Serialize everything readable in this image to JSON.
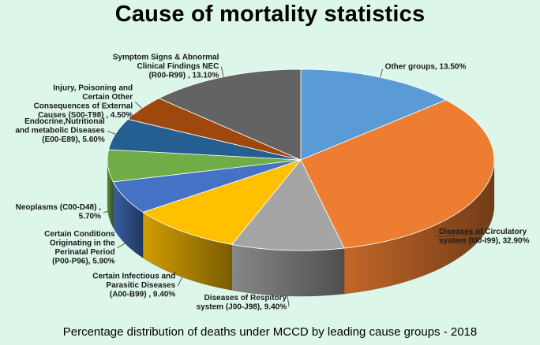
{
  "chart_data": {
    "type": "pie",
    "style": "3d",
    "title": "Cause of mortality statistics",
    "subtitle": "Percentage distribution of deaths under MCCD by leading cause groups - 2018",
    "slices": [
      {
        "label": "Other groups, 13.50%",
        "value": 13.5,
        "color": "#5b9bd5"
      },
      {
        "label": "Diseases of Circulatory system (I00-I99), 32.90%",
        "value": 32.9,
        "color": "#ed7d31"
      },
      {
        "label": "Diseases of Respitory system (J00-J98), 9.40%",
        "value": 9.4,
        "color": "#a5a5a5"
      },
      {
        "label": "Certain Infectious and Parasitic Diseases (A00-B99) , 9.40%",
        "value": 9.4,
        "color": "#ffc000"
      },
      {
        "label": "Certain Conditions Originating in the Perinatal Period (P00-P96), 5.90%",
        "value": 5.9,
        "color": "#4472c4"
      },
      {
        "label": "Neoplasms (C00-D48) , 5.70%",
        "value": 5.7,
        "color": "#70ad47"
      },
      {
        "label": "Endocrine,Nutritional and metabolic Diseases (E00-E89), 5.60%",
        "value": 5.6,
        "color": "#255e91"
      },
      {
        "label": "Injury, Poisoning and Certain Other Consequences of External Causes (S00-T98) , 4.50%",
        "value": 4.5,
        "color": "#9e480e"
      },
      {
        "label": "Symptom Signs & Abnormal Clinical Findings NEC (R00-R99) , 13.10%",
        "value": 13.1,
        "color": "#636363"
      }
    ]
  }
}
